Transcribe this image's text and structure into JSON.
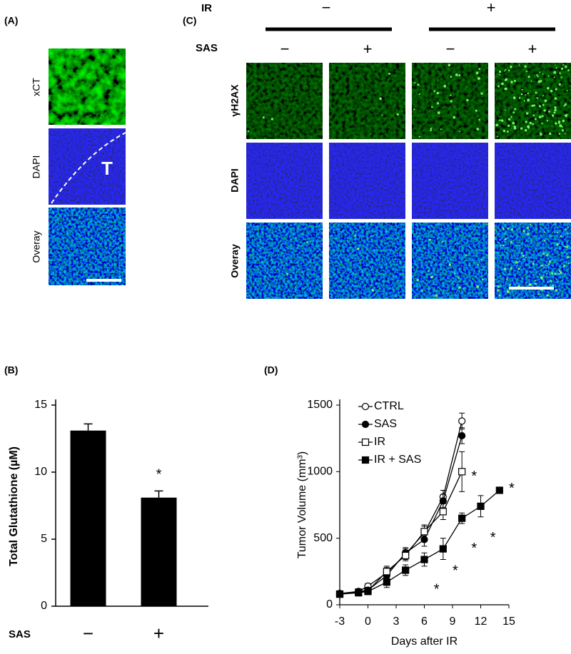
{
  "panel_a": {
    "label": "(A)",
    "rows": [
      "xCT",
      "DAPI",
      "Overay"
    ],
    "region_label": "T"
  },
  "panel_c": {
    "label": "(C)",
    "ir_label": "IR",
    "ir_levels": [
      "−",
      "+"
    ],
    "sas_label": "SAS",
    "sas_levels": [
      "−",
      "+",
      "−",
      "+"
    ],
    "rows": [
      "γH2AX",
      "DAPI",
      "Overay"
    ]
  },
  "chart_data": [
    {
      "type": "bar",
      "panel": "(B)",
      "ylabel": "Total Glutathione (µM)",
      "xlabel": "SAS",
      "categories": [
        "−",
        "+"
      ],
      "values": [
        13.1,
        8.1
      ],
      "errors": [
        0.5,
        0.5
      ],
      "color": "#000000",
      "ylim": [
        0,
        15
      ],
      "yticks": [
        0,
        5,
        10,
        15
      ],
      "annotations": [
        {
          "text": "*",
          "category": 1
        }
      ]
    },
    {
      "type": "line",
      "panel": "(D)",
      "ylabel": "Tumor Volume (mm³)",
      "xlabel": "Days after IR",
      "xlim": [
        -3,
        15
      ],
      "xticks": [
        -3,
        0,
        3,
        6,
        9,
        12,
        15
      ],
      "ylim": [
        0,
        1500
      ],
      "yticks": [
        0,
        500,
        1000,
        1500
      ],
      "legend": "upper left",
      "series": [
        {
          "name": "CTRL",
          "color": "#000000",
          "marker": "circle-open",
          "x": [
            -3,
            -1,
            0,
            2,
            4,
            6,
            8,
            10
          ],
          "values": [
            85,
            100,
            140,
            240,
            380,
            540,
            810,
            1380
          ],
          "errors": [
            20,
            15,
            20,
            40,
            40,
            50,
            50,
            60
          ]
        },
        {
          "name": "SAS",
          "color": "#000000",
          "marker": "circle-filled",
          "x": [
            -3,
            -1,
            0,
            2,
            4,
            6,
            8,
            10
          ],
          "values": [
            80,
            100,
            110,
            220,
            390,
            490,
            780,
            1270
          ],
          "errors": [
            20,
            15,
            20,
            40,
            40,
            50,
            50,
            60
          ]
        },
        {
          "name": "IR",
          "color": "#000000",
          "marker": "square-open",
          "x": [
            -3,
            -1,
            0,
            2,
            4,
            6,
            8,
            10
          ],
          "values": [
            80,
            95,
            105,
            250,
            370,
            550,
            700,
            1000
          ],
          "errors": [
            20,
            15,
            20,
            40,
            40,
            50,
            60,
            150
          ]
        },
        {
          "name": "IR + SAS",
          "color": "#000000",
          "marker": "square-filled",
          "x": [
            -3,
            -1,
            0,
            2,
            4,
            6,
            8,
            10,
            12,
            14
          ],
          "values": [
            80,
            90,
            100,
            170,
            260,
            340,
            420,
            650,
            740,
            860
          ],
          "errors": [
            20,
            15,
            20,
            40,
            40,
            50,
            80,
            40,
            80,
            null
          ]
        }
      ],
      "annotations": [
        {
          "text": "*",
          "x": 7.3,
          "y": 110
        },
        {
          "text": "*",
          "x": 9.3,
          "y": 250
        },
        {
          "text": "*",
          "x": 11.3,
          "y": 420
        },
        {
          "text": "*",
          "x": 13.3,
          "y": 500
        },
        {
          "text": "*",
          "x": 15.3,
          "y": 870
        },
        {
          "text": "*",
          "x": 11.3,
          "y": 960
        }
      ]
    }
  ]
}
